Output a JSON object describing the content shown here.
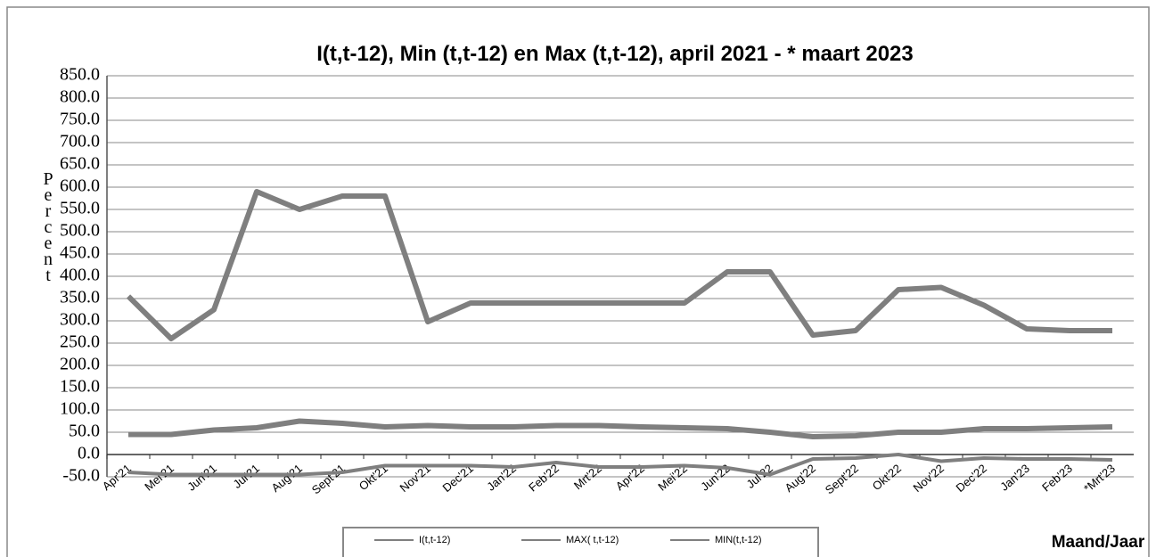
{
  "chart_data": {
    "type": "line",
    "title": "I(t,t-12), Min (t,t-12) en Max (t,t-12), april 2021 - * maart 2023",
    "y_label": "Percent",
    "x_label": "Maand/Jaar",
    "categories": [
      "Apr'21",
      "Mei'21",
      "Jun'21",
      "Jul'21",
      "Aug'21",
      "Sept'21",
      "Okt'21",
      "Nov'21",
      "Dec'21",
      "Jan'22",
      "Feb'22",
      "Mrt'22",
      "Apr'22",
      "Mei'22",
      "Jun'22",
      "Jul'22",
      "Aug'22",
      "Sept'22",
      "Okt'22",
      "Nov'22",
      "Dec'22",
      "Jan'23",
      "Feb'23",
      "*Mrt'23"
    ],
    "series": [
      {
        "name": "I(t,t-12)",
        "color": "#7f7f7f",
        "values": [
          45,
          45,
          55,
          60,
          75,
          70,
          62,
          65,
          62,
          62,
          65,
          65,
          62,
          60,
          58,
          50,
          40,
          42,
          50,
          50,
          58,
          58,
          60,
          62
        ]
      },
      {
        "name": "MAX( t,t-12)",
        "color": "#7f7f7f",
        "values": [
          355,
          260,
          325,
          590,
          550,
          580,
          580,
          298,
          340,
          340,
          340,
          340,
          340,
          340,
          410,
          410,
          268,
          278,
          370,
          375,
          335,
          282,
          278,
          278
        ]
      },
      {
        "name": "MIN(t,t-12)",
        "color": "#7f7f7f",
        "values": [
          -40,
          -45,
          -45,
          -45,
          -45,
          -40,
          -25,
          -25,
          -25,
          -28,
          -18,
          -28,
          -28,
          -25,
          -30,
          -45,
          -10,
          -8,
          0,
          -15,
          -8,
          -10,
          -10,
          -12
        ]
      }
    ],
    "ylim": [
      -50,
      850
    ],
    "yticks": [
      {
        "value": -50,
        "label": "-50.0"
      },
      {
        "value": 0,
        "label": "0.0"
      },
      {
        "value": 50,
        "label": "50.0"
      },
      {
        "value": 100,
        "label": "100.0"
      },
      {
        "value": 150,
        "label": "150.0"
      },
      {
        "value": 200,
        "label": "200.0"
      },
      {
        "value": 250,
        "label": "250.0"
      },
      {
        "value": 300,
        "label": "300.0"
      },
      {
        "value": 350,
        "label": "350.0"
      },
      {
        "value": 400,
        "label": "400.0"
      },
      {
        "value": 450,
        "label": "450.0"
      },
      {
        "value": 500,
        "label": "500.0"
      },
      {
        "value": 550,
        "label": "550.0"
      },
      {
        "value": 600,
        "label": "600.0"
      },
      {
        "value": 650,
        "label": "650.0"
      },
      {
        "value": 700,
        "label": "700.0"
      },
      {
        "value": 750,
        "label": "750.0"
      },
      {
        "value": 800,
        "label": "800.0"
      },
      {
        "value": 850,
        "label": "850.0"
      }
    ],
    "grid": true,
    "legend": "bottom"
  }
}
